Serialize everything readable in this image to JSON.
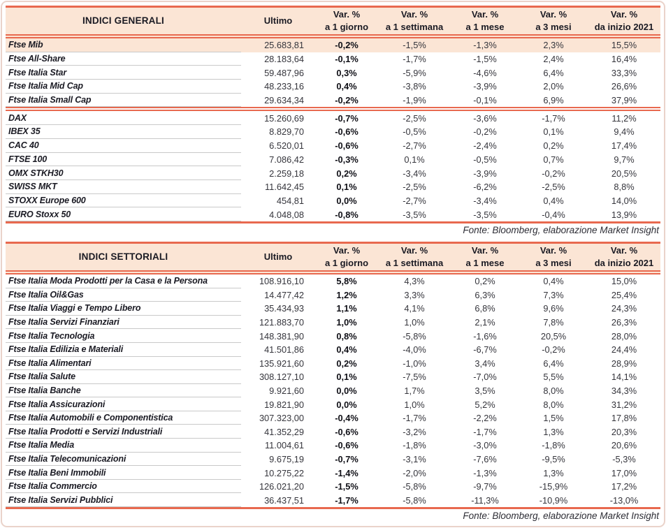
{
  "fonte": "Fonte: Bloomberg, elaborazione Market Insight",
  "colors": {
    "accent_red": "#E8694F",
    "header_bg": "#FBE5D5",
    "highlight_row_bg": "#FBE5D5",
    "divider_gray": "#C9C9C9",
    "text_dark": "#1A1A23"
  },
  "tables": [
    {
      "title": "INDICI GENERALI",
      "col_ultimo": "Ultimo",
      "var_top": "Var. %",
      "var_subs": [
        "a 1 giorno",
        "a 1 settimana",
        "a 1 mese",
        "a 3 mesi",
        "da inizio 2021"
      ],
      "rows": [
        {
          "name": "Ftse Mib",
          "ultimo": "25.683,81",
          "d1": "-0,2%",
          "w1": "-1,5%",
          "m1": "-1,3%",
          "m3": "2,3%",
          "ytd": "15,5%",
          "highlight": true
        },
        {
          "name": "Ftse All-Share",
          "ultimo": "28.183,64",
          "d1": "-0,1%",
          "w1": "-1,7%",
          "m1": "-1,5%",
          "m3": "2,4%",
          "ytd": "16,4%"
        },
        {
          "name": "Ftse Italia Star",
          "ultimo": "59.487,96",
          "d1": "0,3%",
          "w1": "-5,9%",
          "m1": "-4,6%",
          "m3": "6,4%",
          "ytd": "33,3%"
        },
        {
          "name": "Ftse Italia Mid Cap",
          "ultimo": "48.233,16",
          "d1": "0,4%",
          "w1": "-3,8%",
          "m1": "-3,9%",
          "m3": "2,0%",
          "ytd": "26,6%"
        },
        {
          "name": "Ftse Italia Small Cap",
          "ultimo": "29.634,34",
          "d1": "-0,2%",
          "w1": "-1,9%",
          "m1": "-0,1%",
          "m3": "6,9%",
          "ytd": "37,9%",
          "group_end": true
        },
        {
          "name": "DAX",
          "ultimo": "15.260,69",
          "d1": "-0,7%",
          "w1": "-2,5%",
          "m1": "-3,6%",
          "m3": "-1,7%",
          "ytd": "11,2%"
        },
        {
          "name": "IBEX 35",
          "ultimo": "8.829,70",
          "d1": "-0,6%",
          "w1": "-0,5%",
          "m1": "-0,2%",
          "m3": "0,1%",
          "ytd": "9,4%"
        },
        {
          "name": "CAC 40",
          "ultimo": "6.520,01",
          "d1": "-0,6%",
          "w1": "-2,7%",
          "m1": "-2,4%",
          "m3": "0,2%",
          "ytd": "17,4%"
        },
        {
          "name": "FTSE 100",
          "ultimo": "7.086,42",
          "d1": "-0,3%",
          "w1": "0,1%",
          "m1": "-0,5%",
          "m3": "0,7%",
          "ytd": "9,7%"
        },
        {
          "name": "OMX STKH30",
          "ultimo": "2.259,18",
          "d1": "0,2%",
          "w1": "-3,4%",
          "m1": "-3,9%",
          "m3": "-0,2%",
          "ytd": "20,5%"
        },
        {
          "name": "SWISS MKT",
          "ultimo": "11.642,45",
          "d1": "0,1%",
          "w1": "-2,5%",
          "m1": "-6,2%",
          "m3": "-2,5%",
          "ytd": "8,8%"
        },
        {
          "name": "STOXX Europe 600",
          "ultimo": "454,81",
          "d1": "0,0%",
          "w1": "-2,7%",
          "m1": "-3,4%",
          "m3": "0,4%",
          "ytd": "14,0%"
        },
        {
          "name": "EURO Stoxx 50",
          "ultimo": "4.048,08",
          "d1": "-0,8%",
          "w1": "-3,5%",
          "m1": "-3,5%",
          "m3": "-0,4%",
          "ytd": "13,9%"
        }
      ]
    },
    {
      "title": "INDICI SETTORIALI",
      "col_ultimo": "Ultimo",
      "var_top": "Var. %",
      "var_subs": [
        "a 1 giorno",
        "a 1 settimana",
        "a 1 mese",
        "a 3 mesi",
        "da inizio 2021"
      ],
      "rows": [
        {
          "name": "Ftse Italia Moda Prodotti per la Casa e la Persona",
          "ultimo": "108.916,10",
          "d1": "5,8%",
          "w1": "4,3%",
          "m1": "0,2%",
          "m3": "0,4%",
          "ytd": "15,0%"
        },
        {
          "name": "Ftse Italia Oil&Gas",
          "ultimo": "14.477,42",
          "d1": "1,2%",
          "w1": "3,3%",
          "m1": "6,3%",
          "m3": "7,3%",
          "ytd": "25,4%"
        },
        {
          "name": "Ftse Italia Viaggi e Tempo Libero",
          "ultimo": "35.434,93",
          "d1": "1,1%",
          "w1": "4,1%",
          "m1": "6,8%",
          "m3": "9,6%",
          "ytd": "24,3%"
        },
        {
          "name": "Ftse Italia Servizi Finanziari",
          "ultimo": "121.883,70",
          "d1": "1,0%",
          "w1": "1,0%",
          "m1": "2,1%",
          "m3": "7,8%",
          "ytd": "26,3%"
        },
        {
          "name": "Ftse Italia Tecnologia",
          "ultimo": "148.381,90",
          "d1": "0,8%",
          "w1": "-5,8%",
          "m1": "-1,6%",
          "m3": "20,5%",
          "ytd": "28,0%"
        },
        {
          "name": "Ftse Italia Edilizia e Materiali",
          "ultimo": "41.501,86",
          "d1": "0,4%",
          "w1": "-4,0%",
          "m1": "-6,7%",
          "m3": "-0,2%",
          "ytd": "24,4%"
        },
        {
          "name": "Ftse Italia Alimentari",
          "ultimo": "135.921,60",
          "d1": "0,2%",
          "w1": "-1,0%",
          "m1": "3,4%",
          "m3": "6,4%",
          "ytd": "28,9%"
        },
        {
          "name": "Ftse Italia Salute",
          "ultimo": "308.127,10",
          "d1": "0,1%",
          "w1": "-7,5%",
          "m1": "-7,0%",
          "m3": "5,5%",
          "ytd": "14,1%"
        },
        {
          "name": "Ftse Italia Banche",
          "ultimo": "9.921,60",
          "d1": "0,0%",
          "w1": "1,7%",
          "m1": "3,5%",
          "m3": "8,0%",
          "ytd": "34,3%"
        },
        {
          "name": "Ftse Italia Assicurazioni",
          "ultimo": "19.821,90",
          "d1": "0,0%",
          "w1": "1,0%",
          "m1": "5,2%",
          "m3": "8,0%",
          "ytd": "31,2%"
        },
        {
          "name": "Ftse Italia Automobili e Componentistica",
          "ultimo": "307.323,00",
          "d1": "-0,4%",
          "w1": "-1,7%",
          "m1": "-2,2%",
          "m3": "1,5%",
          "ytd": "17,8%"
        },
        {
          "name": "Ftse Italia Prodotti e Servizi Industriali",
          "ultimo": "41.352,29",
          "d1": "-0,6%",
          "w1": "-3,2%",
          "m1": "-1,7%",
          "m3": "1,3%",
          "ytd": "20,3%"
        },
        {
          "name": "Ftse Italia Media",
          "ultimo": "11.004,61",
          "d1": "-0,6%",
          "w1": "-1,8%",
          "m1": "-3,0%",
          "m3": "-1,8%",
          "ytd": "20,6%"
        },
        {
          "name": "Ftse Italia Telecomunicazioni",
          "ultimo": "9.675,19",
          "d1": "-0,7%",
          "w1": "-3,1%",
          "m1": "-7,6%",
          "m3": "-9,5%",
          "ytd": "-5,3%"
        },
        {
          "name": "Ftse Italia Beni Immobili",
          "ultimo": "10.275,22",
          "d1": "-1,4%",
          "w1": "-2,0%",
          "m1": "-1,3%",
          "m3": "1,3%",
          "ytd": "17,0%"
        },
        {
          "name": "Ftse Italia Commercio",
          "ultimo": "126.021,20",
          "d1": "-1,5%",
          "w1": "-5,8%",
          "m1": "-9,7%",
          "m3": "-15,9%",
          "ytd": "17,2%"
        },
        {
          "name": "Ftse Italia Servizi Pubblici",
          "ultimo": "36.437,51",
          "d1": "-1,7%",
          "w1": "-5,8%",
          "m1": "-11,3%",
          "m3": "-10,9%",
          "ytd": "-13,0%"
        }
      ]
    }
  ]
}
